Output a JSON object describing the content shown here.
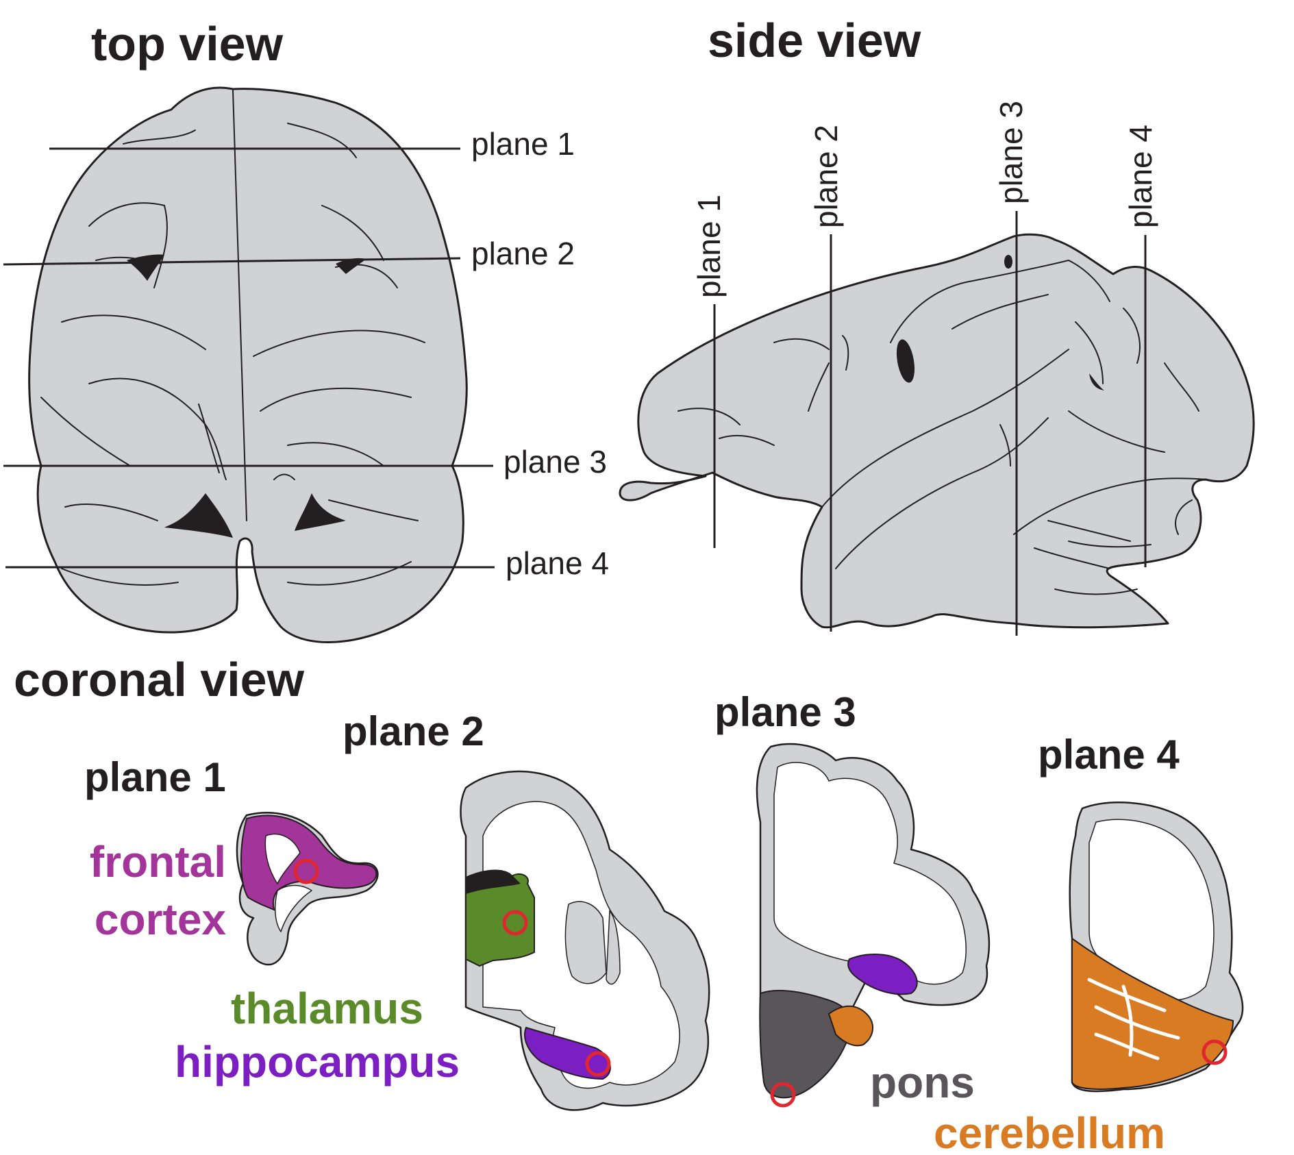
{
  "views": {
    "top_view": "top view",
    "side_view": "side view",
    "coronal_view": "coronal view"
  },
  "planes": [
    "plane 1",
    "plane 2",
    "plane 3",
    "plane 4"
  ],
  "coronal_headers": [
    "plane 1",
    "plane 2",
    "plane 3",
    "plane 4"
  ],
  "regions": {
    "frontal_cortex_line1": "frontal",
    "frontal_cortex_line2": "cortex",
    "thalamus": "thalamus",
    "hippocampus": "hippocampus",
    "pons": "pons",
    "cerebellum": "cerebellum"
  },
  "colors": {
    "frontal_cortex": "#a3349a",
    "thalamus": "#5b8a2a",
    "hippocampus": "#7b1fc3",
    "pons": "#5a5558",
    "cerebellum": "#d97b23",
    "marker": "#e0262e",
    "tissue": "#d1d2d4",
    "outline": "#231f20"
  }
}
